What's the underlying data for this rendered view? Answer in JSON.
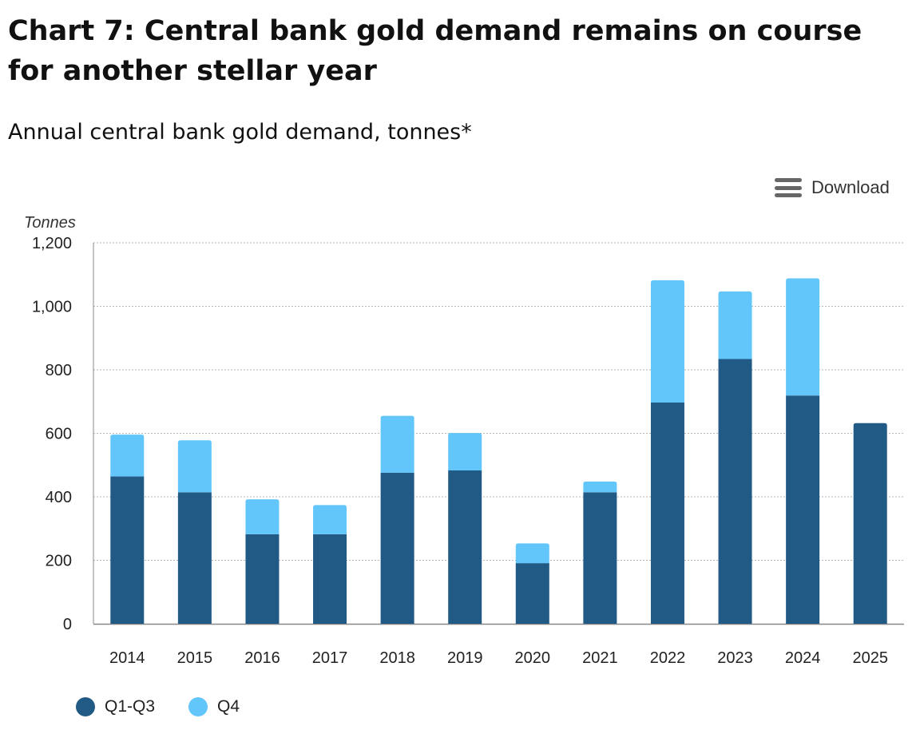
{
  "header": {
    "title": "Chart 7: Central bank gold demand remains on course for another stellar year",
    "subtitle": "Annual central bank gold demand, tonnes*"
  },
  "toolbar": {
    "download_label": "Download",
    "download_icon": "menu-icon"
  },
  "colors": {
    "q1q3": "#225a86",
    "q4": "#62c6fb",
    "grid": "#b5b5b5",
    "axis": "#888888"
  },
  "chart_data": {
    "type": "bar",
    "stacked": true,
    "title": "Chart 7: Central bank gold demand remains on course for another stellar year",
    "subtitle": "Annual central bank gold demand, tonnes*",
    "ylabel": "Tonnes",
    "xlabel": "",
    "ylim": [
      0,
      1200
    ],
    "yticks": [
      0,
      200,
      400,
      600,
      800,
      1000,
      1200
    ],
    "ytick_labels": [
      "0",
      "200",
      "400",
      "600",
      "800",
      "1,000",
      "1,200"
    ],
    "grid": true,
    "categories": [
      "2014",
      "2015",
      "2016",
      "2017",
      "2018",
      "2019",
      "2020",
      "2021",
      "2022",
      "2023",
      "2024",
      "2025"
    ],
    "series": [
      {
        "name": "Q1-Q3",
        "color": "#225a86",
        "values": [
          464,
          414,
          282,
          282,
          476,
          483,
          191,
          414,
          697,
          834,
          719,
          632
        ]
      },
      {
        "name": "Q4",
        "color": "#62c6fb",
        "values": [
          132,
          164,
          110,
          92,
          179,
          118,
          62,
          34,
          385,
          213,
          369,
          0
        ]
      }
    ],
    "legend_position": "bottom-left"
  }
}
